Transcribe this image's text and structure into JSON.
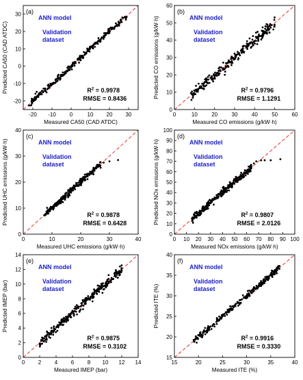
{
  "chart_data": [
    {
      "type": "scatter",
      "panel_label": "(a)",
      "model_label": "ANN model",
      "dataset_label": "Validation\ndataset",
      "xlabel": "Measured CA50 (CAD ATDC)",
      "ylabel": "Predicted CA50 (CAD ATDC)",
      "xlim": [
        -25,
        35
      ],
      "ylim": [
        -25,
        35
      ],
      "xticks": [
        -20,
        -10,
        0,
        10,
        20,
        30
      ],
      "yticks": [
        -20,
        -10,
        0,
        10,
        20,
        30
      ],
      "r2_prefix": "R",
      "r2_sup": "2",
      "r2_value": " = 0.9978",
      "rmse_text": "RMSE = 0.8436",
      "fit_line": [
        -25,
        35
      ],
      "range": [
        -22,
        29
      ],
      "noise": 0.9,
      "n": 260,
      "seed": 11
    },
    {
      "type": "scatter",
      "panel_label": "(b)",
      "model_label": "ANN model",
      "dataset_label": "Validation\ndataset",
      "xlabel": "Measured CO emissions (g/kW·h)",
      "ylabel": "Predicted CO emissions (g/kW·h)",
      "xlim": [
        0,
        60
      ],
      "ylim": [
        0,
        60
      ],
      "xticks": [
        0,
        10,
        20,
        30,
        40,
        50,
        60
      ],
      "yticks": [
        0,
        10,
        20,
        30,
        40,
        50,
        60
      ],
      "r2_prefix": "R",
      "r2_sup": "2",
      "r2_value": " = 0.9796",
      "rmse_text": "RMSE = 1.1291",
      "fit_line": [
        0,
        60
      ],
      "range": [
        8,
        50
      ],
      "noise": 1.4,
      "n": 260,
      "seed": 23
    },
    {
      "type": "scatter",
      "panel_label": "(c)",
      "model_label": "ANN model",
      "dataset_label": "Validation\ndataset",
      "xlabel": "Measured UHC emissions (g/kW·h)",
      "ylabel": "Predicted UHC emissions (g/kW·h)",
      "xlim": [
        0,
        40
      ],
      "ylim": [
        0,
        40
      ],
      "xticks": [
        0,
        10,
        20,
        30,
        40
      ],
      "yticks": [
        0,
        10,
        20,
        30,
        40
      ],
      "r2_prefix": "R",
      "r2_sup": "2",
      "r2_value": " = 0.9878",
      "rmse_text": "RMSE = 0.6428",
      "fit_line": [
        0,
        40
      ],
      "range": [
        7,
        27
      ],
      "noise": 0.6,
      "n": 260,
      "seed": 37,
      "outliers": [
        [
          28,
          27.5
        ],
        [
          30,
          28
        ],
        [
          33,
          28.5
        ],
        [
          26.5,
          26.2
        ]
      ]
    },
    {
      "type": "scatter",
      "panel_label": "(d)",
      "model_label": "ANN model",
      "dataset_label": "Validation\ndataset",
      "xlabel": "Measured NOx emissions (g/kW·h)",
      "ylabel": "Predicted NOx emissions (g/kW·h)",
      "xlim": [
        0,
        100
      ],
      "ylim": [
        0,
        100
      ],
      "xticks": [
        0,
        10,
        20,
        30,
        40,
        50,
        60,
        70,
        80,
        90,
        100
      ],
      "yticks": [
        0,
        10,
        20,
        30,
        40,
        50,
        60,
        70,
        80,
        90,
        100
      ],
      "r2_prefix": "R",
      "r2_sup": "2",
      "r2_value": " = 0.9807",
      "rmse_text": "RMSE = 2.0126",
      "fit_line": [
        0,
        100
      ],
      "range": [
        14,
        64
      ],
      "noise": 1.8,
      "n": 260,
      "seed": 41,
      "outliers": [
        [
          68,
          70
        ],
        [
          72,
          71
        ],
        [
          75,
          71
        ],
        [
          80,
          71
        ],
        [
          88,
          72
        ],
        [
          63,
          62
        ],
        [
          66,
          68
        ]
      ]
    },
    {
      "type": "scatter",
      "panel_label": "(e)",
      "model_label": "ANN model",
      "dataset_label": "Validation\ndataset",
      "xlabel": "Measured IMEP (bar)",
      "ylabel": "Predicted IMEP (bar)",
      "xlim": [
        0,
        14
      ],
      "ylim": [
        0,
        14
      ],
      "xticks": [
        0,
        2,
        4,
        6,
        8,
        10,
        12,
        14
      ],
      "yticks": [
        0,
        2,
        4,
        6,
        8,
        10,
        12,
        14
      ],
      "r2_prefix": "R",
      "r2_sup": "2",
      "r2_value": " = 0.9875",
      "rmse_text": "RMSE = 0.3102",
      "fit_line": [
        0,
        14
      ],
      "range": [
        1.9,
        12
      ],
      "noise": 0.3,
      "n": 280,
      "seed": 53
    },
    {
      "type": "scatter",
      "panel_label": "(f)",
      "model_label": "ANN model",
      "dataset_label": "Validation\ndataset",
      "xlabel": "Measured ITE (%)",
      "ylabel": "Predicted ITE (%)",
      "xlim": [
        15,
        40
      ],
      "ylim": [
        15,
        40
      ],
      "xticks": [
        15,
        20,
        25,
        30,
        35,
        40
      ],
      "yticks": [
        15,
        20,
        25,
        30,
        35,
        40
      ],
      "r2_prefix": "R",
      "r2_sup": "2",
      "r2_value": " = 0.9916",
      "rmse_text": "RMSE = 0.3330",
      "fit_line": [
        15,
        40
      ],
      "range": [
        19,
        37
      ],
      "noise": 0.35,
      "n": 260,
      "seed": 67
    }
  ],
  "colors": {
    "points": "#000000",
    "fit_line": "#e8302a",
    "annotation": "#1f22c9",
    "axis": "#000000"
  }
}
